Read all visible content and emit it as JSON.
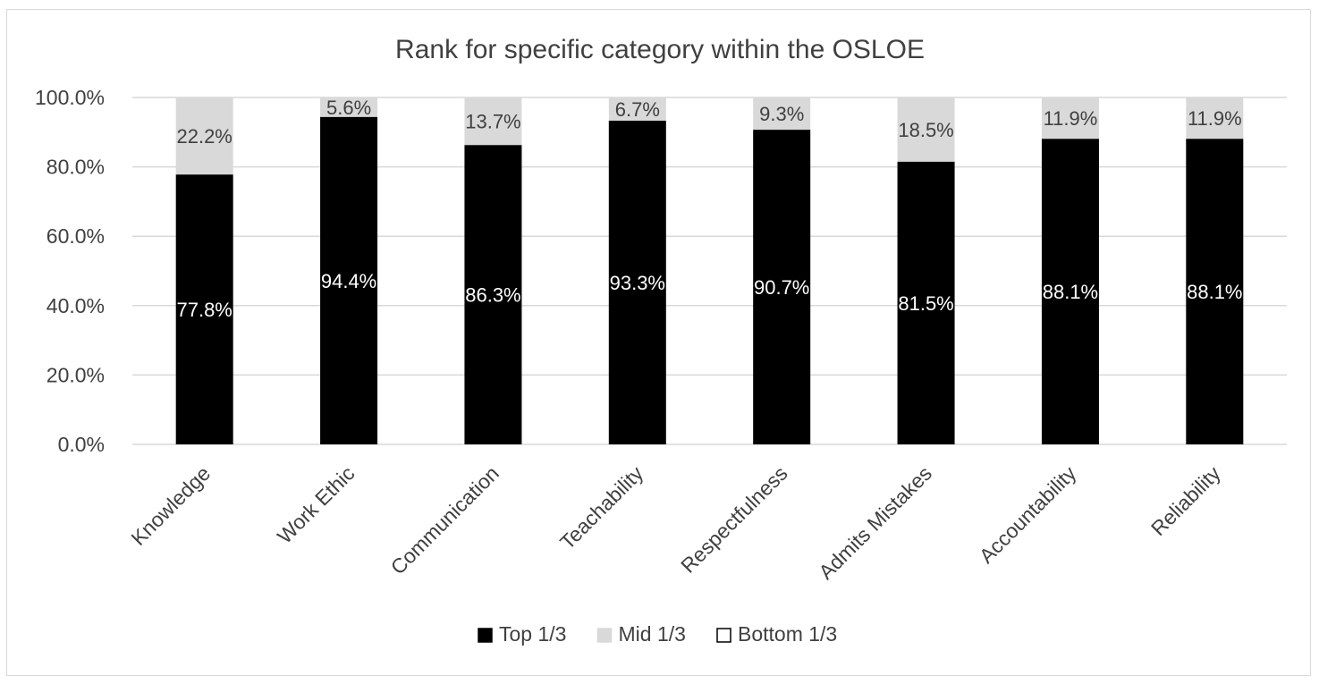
{
  "chart_data": {
    "type": "bar",
    "stacked": true,
    "title": "Rank for specific category within the OSLOE",
    "xlabel": "",
    "ylabel": "",
    "ylim": [
      0,
      100
    ],
    "y_tick_labels": [
      "0.0%",
      "20.0%",
      "40.0%",
      "60.0%",
      "80.0%",
      "100.0%"
    ],
    "y_ticks": [
      0,
      20,
      40,
      60,
      80,
      100
    ],
    "grid": true,
    "legend_position": "bottom",
    "categories": [
      "Knowledge",
      "Work Ethic",
      "Communication",
      "Teachability",
      "Respectfulness",
      "Admits Mistakes",
      "Accountability",
      "Reliability"
    ],
    "series": [
      {
        "name": "Top 1/3",
        "color": "#000000",
        "values": [
          77.8,
          94.4,
          86.3,
          93.3,
          90.7,
          81.5,
          88.1,
          88.1
        ],
        "labels": [
          "77.8%",
          "94.4%",
          "86.3%",
          "93.3%",
          "90.7%",
          "81.5%",
          "88.1%",
          "88.1%"
        ]
      },
      {
        "name": "Mid 1/3",
        "color": "#d9d9d9",
        "values": [
          22.2,
          5.6,
          13.7,
          6.7,
          9.3,
          18.5,
          11.9,
          11.9
        ],
        "labels": [
          "22.2%",
          "5.6%",
          "13.7%",
          "6.7%",
          "9.3%",
          "18.5%",
          "11.9%",
          "11.9%"
        ]
      },
      {
        "name": "Bottom 1/3",
        "color": "#ffffff",
        "values": [
          0,
          0,
          0,
          0,
          0,
          0,
          0,
          0
        ],
        "labels": []
      }
    ]
  }
}
